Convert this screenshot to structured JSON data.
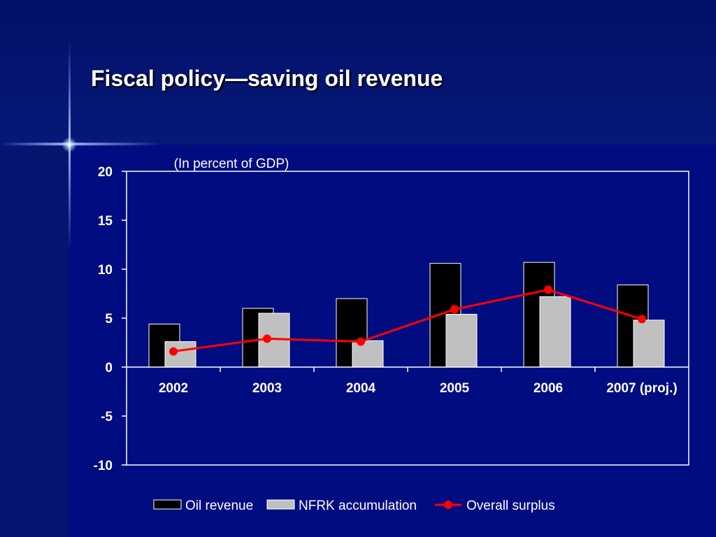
{
  "slide": {
    "title": "Fiscal policy—saving oil revenue"
  },
  "chart_data": {
    "type": "bar",
    "title": "",
    "subtitle": "(In percent of GDP)",
    "xlabel": "",
    "ylabel": "",
    "categories": [
      "2002",
      "2003",
      "2004",
      "2005",
      "2006",
      "2007 (proj.)"
    ],
    "ylim": [
      -10,
      20
    ],
    "yticks": [
      -10,
      -5,
      0,
      5,
      10,
      15,
      20
    ],
    "grid": false,
    "legend_position": "bottom",
    "series": [
      {
        "name": "Oil revenue",
        "kind": "bar",
        "color": "#000000",
        "values": [
          4.4,
          6.0,
          7.0,
          10.6,
          10.7,
          8.4
        ]
      },
      {
        "name": "NFRK accumulation",
        "kind": "bar",
        "color": "#c0c0c0",
        "values": [
          2.6,
          5.5,
          2.7,
          5.4,
          7.2,
          4.8
        ]
      },
      {
        "name": "Overall surplus",
        "kind": "line",
        "color": "#ff0000",
        "values": [
          1.6,
          2.9,
          2.6,
          5.9,
          7.9,
          4.9
        ]
      }
    ]
  }
}
